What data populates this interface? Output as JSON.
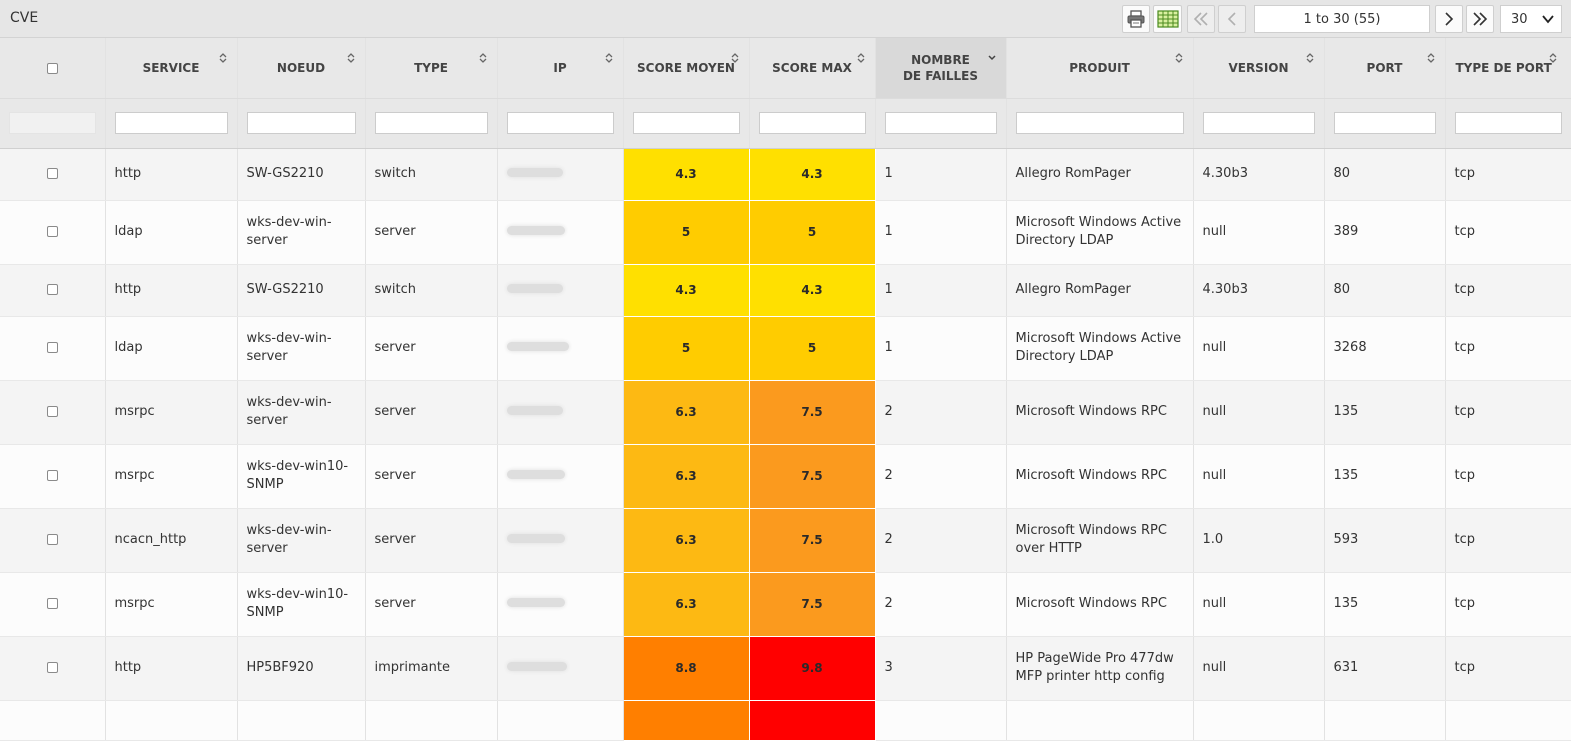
{
  "toolbar": {
    "title": "CVE",
    "page_info": "1 to 30 (55)",
    "page_size": "30"
  },
  "colors": {
    "score_4_3": "#ffe000",
    "score_5": "#ffcc00",
    "score_6_3": "#fdb913",
    "score_7_5": "#fb9a1e",
    "score_8_8": "#ff7f00",
    "score_9_8": "#ff0000"
  },
  "columns": [
    {
      "key": "service",
      "label": "SERVICE"
    },
    {
      "key": "noeud",
      "label": "NOEUD"
    },
    {
      "key": "type",
      "label": "TYPE"
    },
    {
      "key": "ip",
      "label": "IP"
    },
    {
      "key": "score_moyen",
      "label": "SCORE MOYEN"
    },
    {
      "key": "score_max",
      "label": "SCORE MAX"
    },
    {
      "key": "nombre_failles",
      "label": "NOMBRE DE FAILLES"
    },
    {
      "key": "produit",
      "label": "PRODUIT"
    },
    {
      "key": "version",
      "label": "VERSION"
    },
    {
      "key": "port",
      "label": "PORT"
    },
    {
      "key": "type_port",
      "label": "TYPE DE PORT"
    }
  ],
  "rows": [
    {
      "service": "http",
      "noeud": "SW-GS2210",
      "type": "switch",
      "ip": "",
      "score_moyen": "4.3",
      "score_max": "4.3",
      "nombre_failles": "1",
      "produit": "Allegro RomPager",
      "version": "4.30b3",
      "port": "80",
      "type_port": "tcp"
    },
    {
      "service": "ldap",
      "noeud": "wks-dev-win-server",
      "type": "server",
      "ip": "",
      "score_moyen": "5",
      "score_max": "5",
      "nombre_failles": "1",
      "produit": "Microsoft Windows Active Directory LDAP",
      "version": "null",
      "port": "389",
      "type_port": "tcp"
    },
    {
      "service": "http",
      "noeud": "SW-GS2210",
      "type": "switch",
      "ip": "",
      "score_moyen": "4.3",
      "score_max": "4.3",
      "nombre_failles": "1",
      "produit": "Allegro RomPager",
      "version": "4.30b3",
      "port": "80",
      "type_port": "tcp"
    },
    {
      "service": "ldap",
      "noeud": "wks-dev-win-server",
      "type": "server",
      "ip": "",
      "score_moyen": "5",
      "score_max": "5",
      "nombre_failles": "1",
      "produit": "Microsoft Windows Active Directory LDAP",
      "version": "null",
      "port": "3268",
      "type_port": "tcp"
    },
    {
      "service": "msrpc",
      "noeud": "wks-dev-win-server",
      "type": "server",
      "ip": "",
      "score_moyen": "6.3",
      "score_max": "7.5",
      "nombre_failles": "2",
      "produit": "Microsoft Windows RPC",
      "version": "null",
      "port": "135",
      "type_port": "tcp"
    },
    {
      "service": "msrpc",
      "noeud": "wks-dev-win10-SNMP",
      "type": "server",
      "ip": "",
      "score_moyen": "6.3",
      "score_max": "7.5",
      "nombre_failles": "2",
      "produit": "Microsoft Windows RPC",
      "version": "null",
      "port": "135",
      "type_port": "tcp"
    },
    {
      "service": "ncacn_http",
      "noeud": "wks-dev-win-server",
      "type": "server",
      "ip": "",
      "score_moyen": "6.3",
      "score_max": "7.5",
      "nombre_failles": "2",
      "produit": "Microsoft Windows RPC over HTTP",
      "version": "1.0",
      "port": "593",
      "type_port": "tcp"
    },
    {
      "service": "msrpc",
      "noeud": "wks-dev-win10-SNMP",
      "type": "server",
      "ip": "",
      "score_moyen": "6.3",
      "score_max": "7.5",
      "nombre_failles": "2",
      "produit": "Microsoft Windows RPC",
      "version": "null",
      "port": "135",
      "type_port": "tcp"
    },
    {
      "service": "http",
      "noeud": "HP5BF920",
      "type": "imprimante",
      "ip": "",
      "score_moyen": "8.8",
      "score_max": "9.8",
      "nombre_failles": "3",
      "produit": "HP PageWide Pro 477dw MFP printer http config",
      "version": "null",
      "port": "631",
      "type_port": "tcp"
    },
    {
      "service": "",
      "noeud": "",
      "type": "",
      "ip": "",
      "score_moyen": "",
      "score_max": "",
      "nombre_failles": "",
      "produit": "",
      "version": "",
      "port": "",
      "type_port": ""
    }
  ]
}
